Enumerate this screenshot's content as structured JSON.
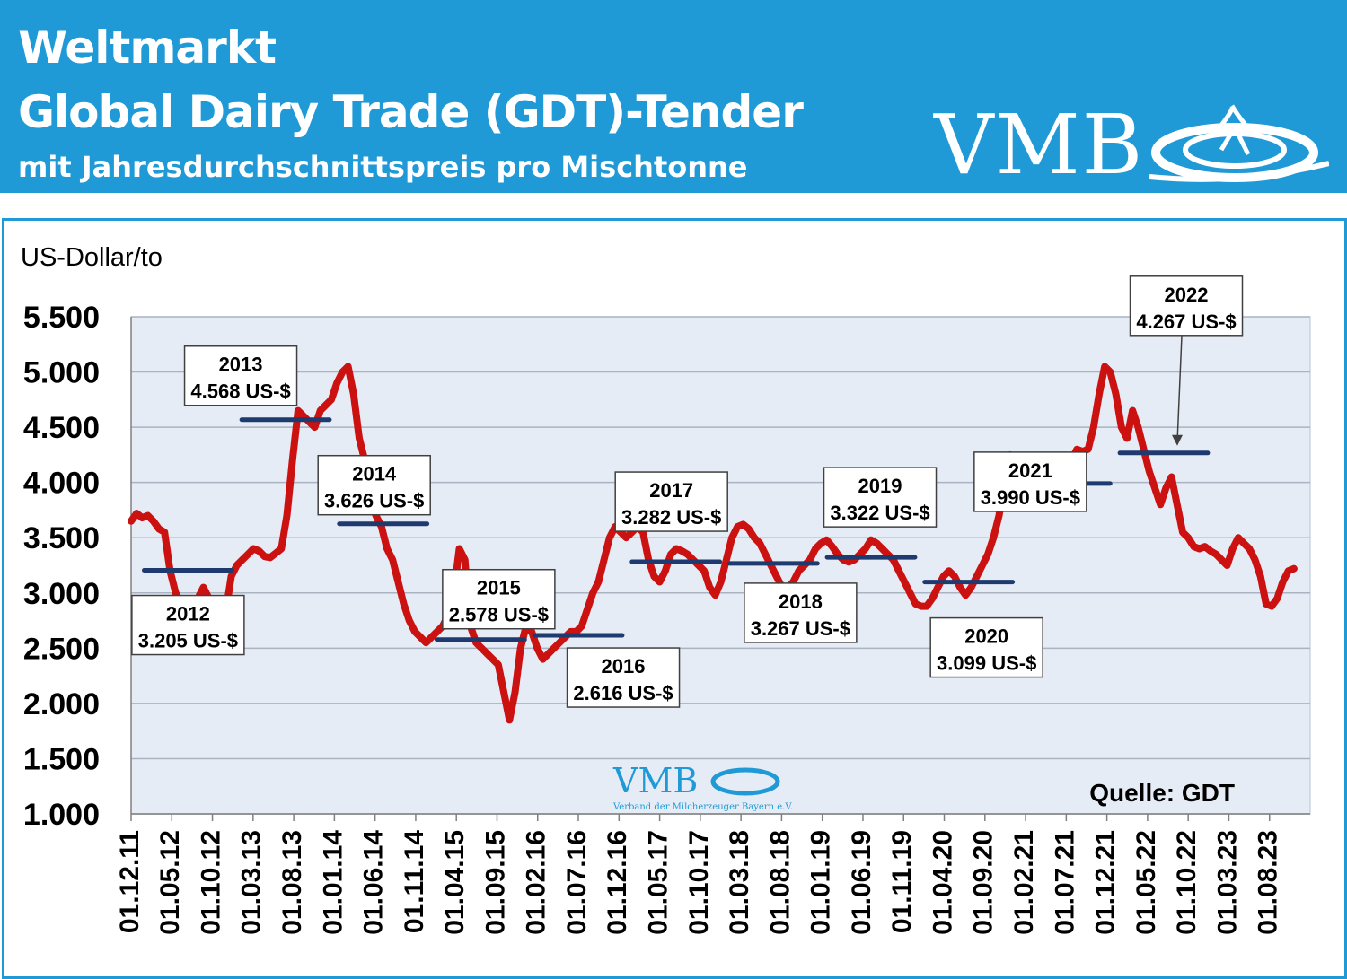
{
  "header": {
    "title1": "Weltmarkt",
    "title2": "Global Dairy Trade (GDT)-Tender",
    "title3": "mit Jahresdurchschnittspreis pro Mischtonne",
    "logo": "VMB"
  },
  "colors": {
    "header_bg": "#1f9ad6",
    "line": "#cc1111",
    "avg_marker": "#1f3a6e",
    "plot_bg": "#e6ecf5"
  },
  "watermark": {
    "logo": "VMB",
    "subtitle": "Verband der Milcherzeuger Bayern e.V."
  },
  "chart_data": {
    "type": "line",
    "ylabel": "US-Dollar/to",
    "ylim": [
      1000,
      5500
    ],
    "yticks": [
      "5.500",
      "5.000",
      "4.500",
      "4.000",
      "3.500",
      "3.000",
      "2.500",
      "2.000",
      "1.500",
      "1.000"
    ],
    "xticks": [
      "01.12.11",
      "01.05.12",
      "01.10.12",
      "01.03.13",
      "01.08.13",
      "01.01.14",
      "01.06.14",
      "01.11.14",
      "01.04.15",
      "01.09.15",
      "01.02.16",
      "01.07.16",
      "01.12.16",
      "01.05.17",
      "01.10.17",
      "01.03.18",
      "01.08.18",
      "01.01.19",
      "01.06.19",
      "01.11.19",
      "01.04.20",
      "01.09.20",
      "01.02.21",
      "01.07.21",
      "01.12.21",
      "01.05.22",
      "01.10.22",
      "01.03.23",
      "01.08.23"
    ],
    "grid": true,
    "source": "Quelle: GDT",
    "series": [
      {
        "values": [
          3650,
          3720,
          3680,
          3700,
          3650,
          3580,
          3550,
          3200,
          3000,
          2900,
          2680,
          2700,
          2950,
          3050,
          2950,
          2800,
          2780,
          2820,
          3150,
          3250,
          3300,
          3350,
          3400,
          3380,
          3330,
          3320,
          3360,
          3400,
          3700,
          4200,
          4650,
          4600,
          4550,
          4500,
          4650,
          4700,
          4750,
          4900,
          5000,
          5050,
          4800,
          4400,
          4200,
          3900,
          3700,
          3600,
          3400,
          3300,
          3100,
          2900,
          2750,
          2650,
          2600,
          2550,
          2600,
          2650,
          2700,
          2800,
          3000,
          3400,
          3300,
          2700,
          2550,
          2500,
          2450,
          2400,
          2350,
          2100,
          1850,
          2100,
          2500,
          2700,
          2650,
          2500,
          2400,
          2450,
          2500,
          2550,
          2600,
          2650,
          2650,
          2700,
          2850,
          3000,
          3100,
          3300,
          3500,
          3600,
          3550,
          3500,
          3550,
          3600,
          3550,
          3300,
          3150,
          3100,
          3200,
          3350,
          3400,
          3380,
          3350,
          3300,
          3250,
          3200,
          3050,
          2980,
          3100,
          3300,
          3500,
          3600,
          3620,
          3580,
          3500,
          3450,
          3350,
          3250,
          3150,
          3050,
          3050,
          3100,
          3200,
          3250,
          3300,
          3400,
          3450,
          3480,
          3420,
          3350,
          3300,
          3280,
          3300,
          3350,
          3400,
          3480,
          3450,
          3400,
          3350,
          3300,
          3200,
          3100,
          3000,
          2900,
          2880,
          2880,
          2950,
          3050,
          3150,
          3200,
          3150,
          3050,
          2980,
          3050,
          3150,
          3250,
          3350,
          3500,
          3700,
          4000,
          4250,
          4100,
          4150,
          4180,
          4100,
          4000,
          3850,
          3800,
          3850,
          3950,
          4050,
          4200,
          4300,
          4280,
          4300,
          4500,
          4800,
          5050,
          5000,
          4800,
          4500,
          4400,
          4650,
          4500,
          4300,
          4100,
          3950,
          3800,
          3950,
          4050,
          3800,
          3550,
          3500,
          3420,
          3400,
          3420,
          3380,
          3350,
          3300,
          3250,
          3400,
          3500,
          3450,
          3400,
          3300,
          3150,
          2900,
          2880,
          2950,
          3100,
          3200,
          3220
        ]
      }
    ],
    "annotations": [
      {
        "year": "2012",
        "avg": 3205,
        "label": "3.205 US-$"
      },
      {
        "year": "2013",
        "avg": 4568,
        "label": "4.568 US-$"
      },
      {
        "year": "2014",
        "avg": 3626,
        "label": "3.626 US-$"
      },
      {
        "year": "2015",
        "avg": 2578,
        "label": "2.578 US-$"
      },
      {
        "year": "2016",
        "avg": 2616,
        "label": "2.616 US-$"
      },
      {
        "year": "2017",
        "avg": 3282,
        "label": "3.282 US-$"
      },
      {
        "year": "2018",
        "avg": 3267,
        "label": "3.267 US-$"
      },
      {
        "year": "2019",
        "avg": 3322,
        "label": "3.322 US-$"
      },
      {
        "year": "2020",
        "avg": 3099,
        "label": "3.099 US-$"
      },
      {
        "year": "2021",
        "avg": 3990,
        "label": "3.990 US-$"
      },
      {
        "year": "2022",
        "avg": 4267,
        "label": "4.267 US-$"
      }
    ]
  }
}
